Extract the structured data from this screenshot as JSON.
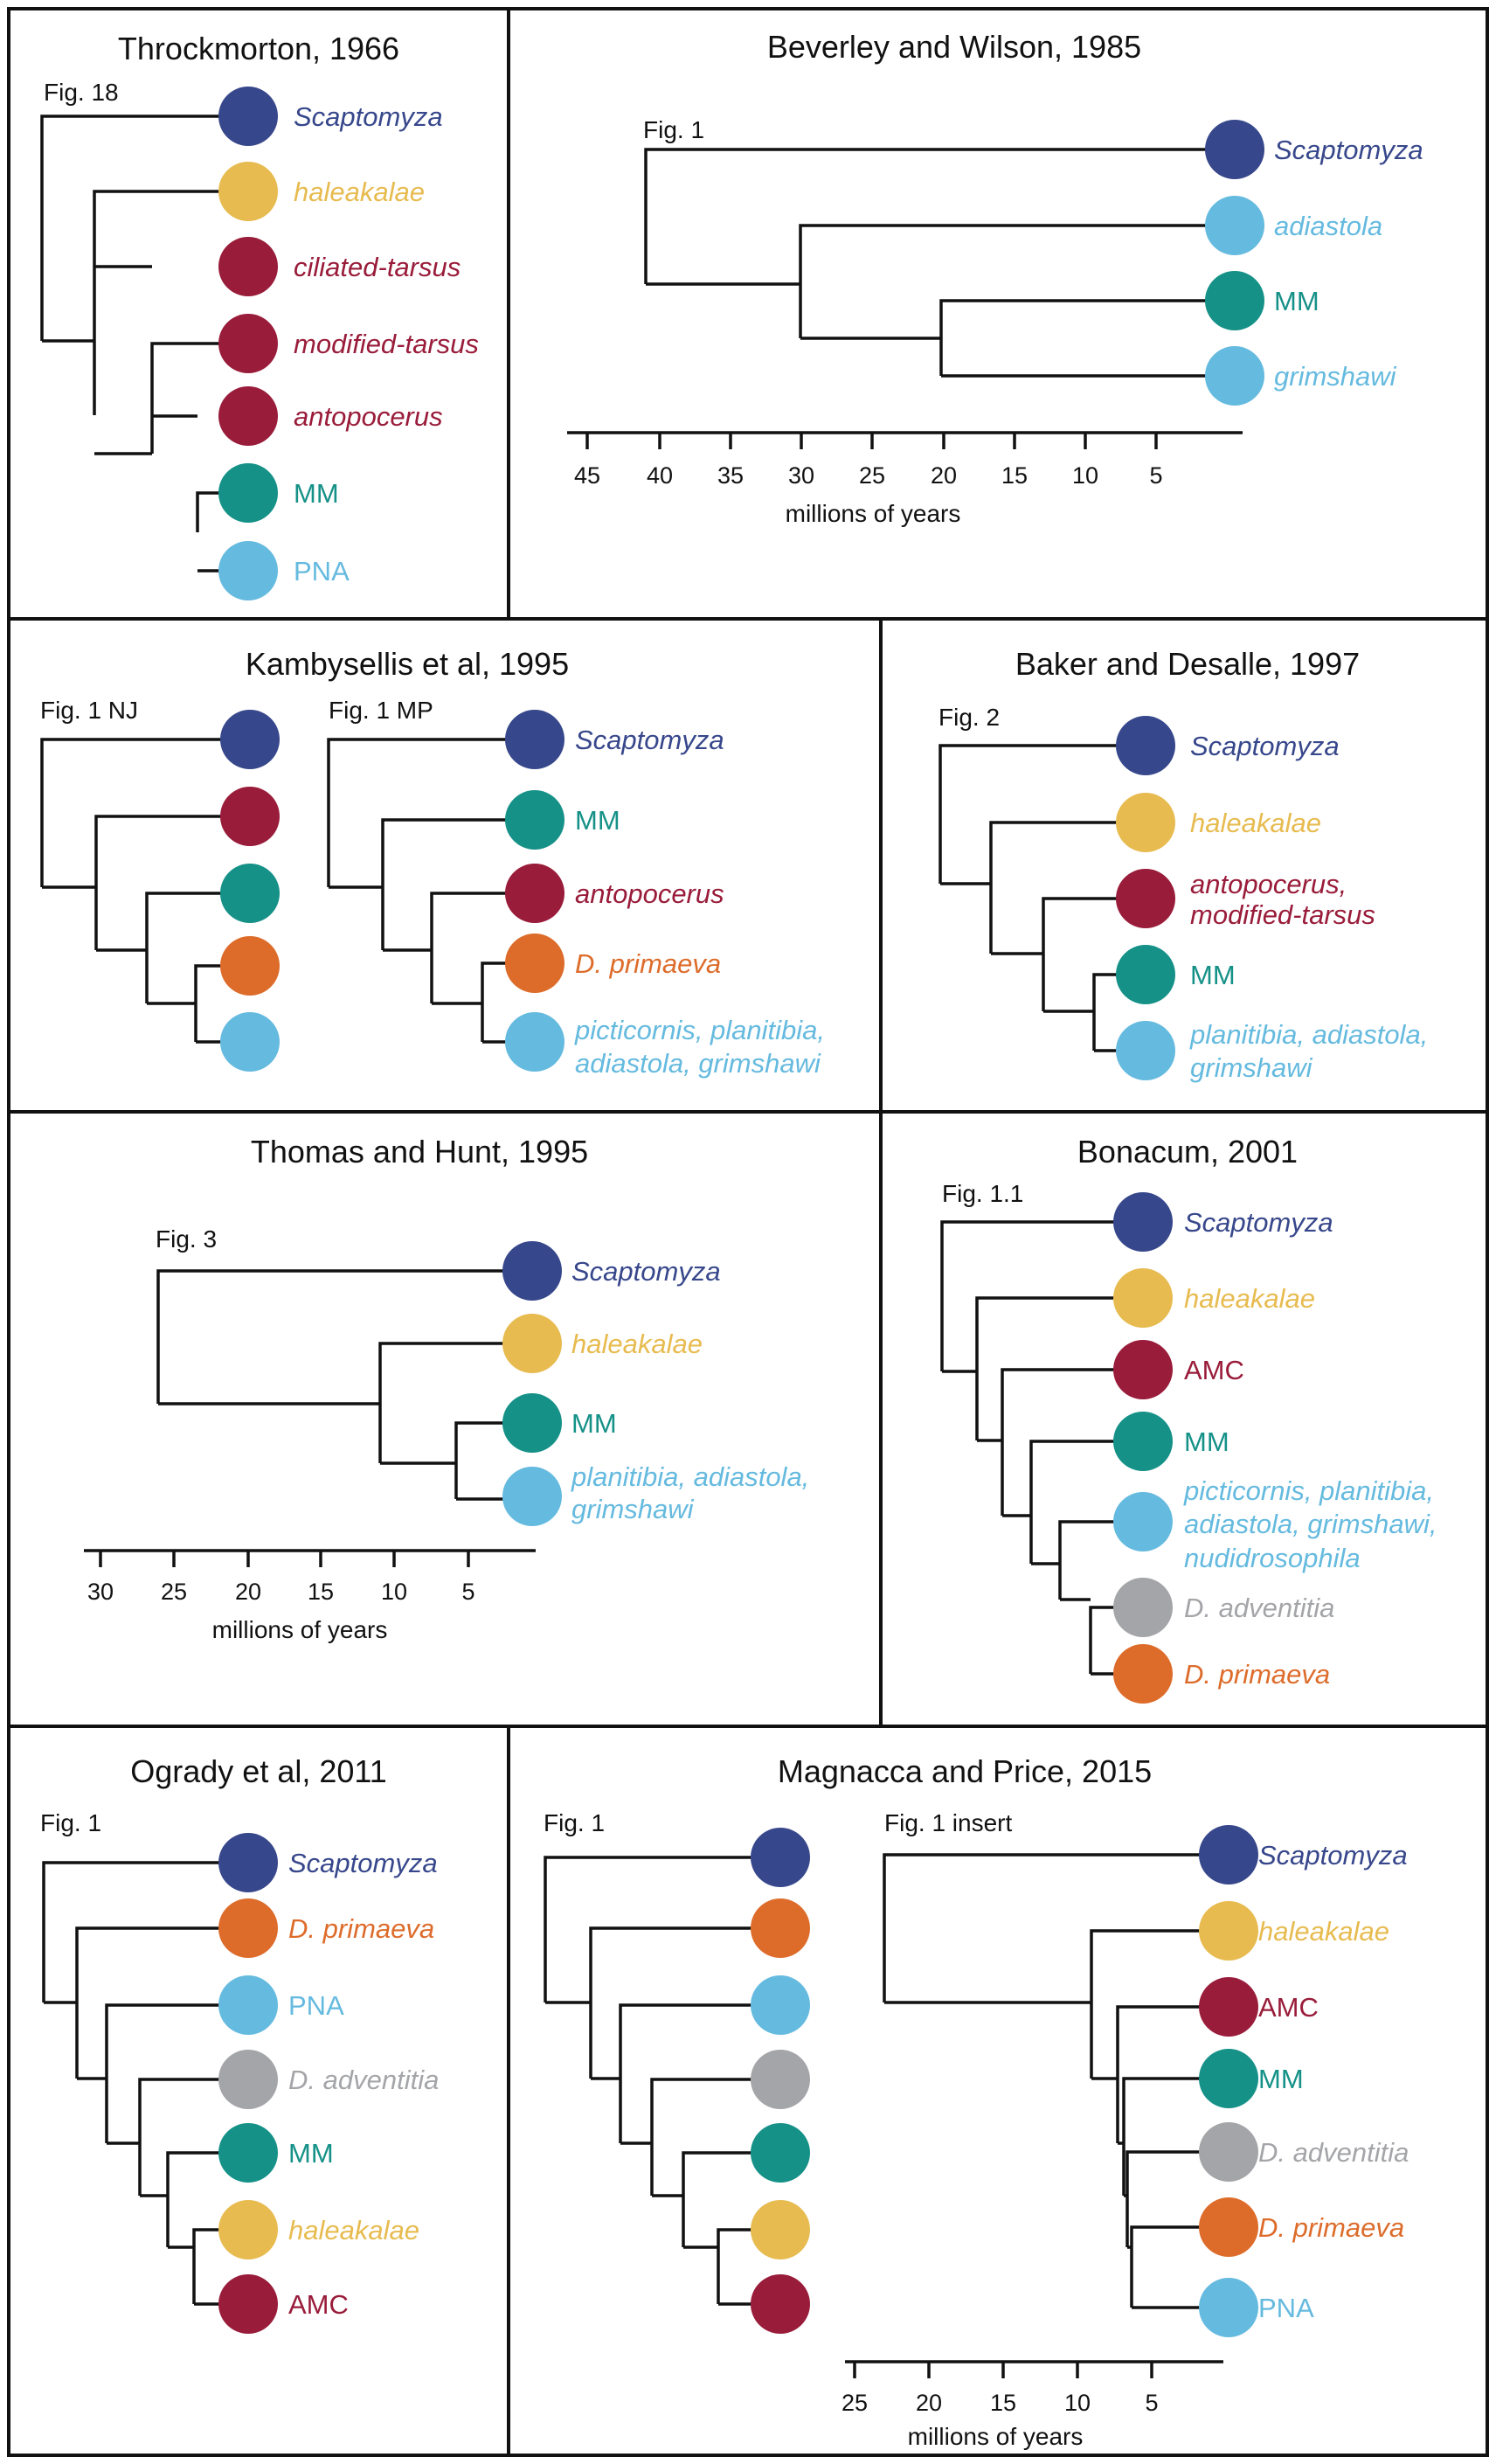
{
  "colors": {
    "Scaptomyza": "#37478B",
    "haleakalae": "#E7BB4F",
    "red_group": "#991C3A",
    "MM": "#159188",
    "PNA": "#65BADF",
    "primaeva": "#DD6C2B",
    "adventitia": "#A4A5A8"
  },
  "panels": {
    "throckmorton": {
      "title": "Throckmorton, 1966",
      "fig": "Fig. 18",
      "labels": [
        "Scaptomyza",
        "haleakalae",
        "ciliated-tarsus",
        "modified-tarsus",
        "antopocerus",
        "MM",
        "PNA"
      ]
    },
    "beverley": {
      "title": "Beverley and Wilson, 1985",
      "fig": "Fig. 1",
      "labels": [
        "Scaptomyza",
        "adiastola",
        "MM",
        "grimshawi"
      ],
      "axis_ticks": [
        "45",
        "40",
        "35",
        "30",
        "25",
        "20",
        "15",
        "10",
        "5"
      ],
      "axis_label": "millions of years"
    },
    "kambysellis": {
      "title": "Kambysellis et al, 1995",
      "fig_nj": "Fig. 1 NJ",
      "fig_mp": "Fig. 1 MP",
      "labels": [
        "Scaptomyza",
        "MM",
        "antopocerus",
        "D. primaeva",
        "picticornis, planitibia,",
        "adiastola, grimshawi"
      ]
    },
    "baker": {
      "title": "Baker and Desalle, 1997",
      "fig": "Fig. 2",
      "labels": [
        "Scaptomyza",
        "haleakalae",
        "antopocerus,",
        "modified-tarsus",
        "MM",
        "planitibia, adiastola,",
        "grimshawi"
      ]
    },
    "thomas": {
      "title": "Thomas and Hunt, 1995",
      "fig": "Fig. 3",
      "labels": [
        "Scaptomyza",
        "haleakalae",
        "MM",
        "planitibia, adiastola,",
        "grimshawi"
      ],
      "axis_ticks": [
        "30",
        "25",
        "20",
        "15",
        "10",
        "5"
      ],
      "axis_label": "millions of years"
    },
    "bonacum": {
      "title": "Bonacum, 2001",
      "fig": "Fig. 1.1",
      "labels": [
        "Scaptomyza",
        "haleakalae",
        "AMC",
        "MM",
        "picticornis, planitibia,",
        "adiastola, grimshawi,",
        "nudidrosophila",
        "D. adventitia",
        "D. primaeva"
      ]
    },
    "ogrady": {
      "title": "Ogrady et al, 2011",
      "fig": "Fig. 1",
      "labels": [
        "Scaptomyza",
        "D. primaeva",
        "PNA",
        "D. adventitia",
        "MM",
        "haleakalae",
        "AMC"
      ]
    },
    "magnacca": {
      "title": "Magnacca and Price, 2015",
      "fig_a": "Fig. 1",
      "fig_b": "Fig. 1 insert",
      "labels": [
        "Scaptomyza",
        "haleakalae",
        "AMC",
        "MM",
        "D. adventitia",
        "D. primaeva",
        "PNA"
      ],
      "axis_ticks": [
        "25",
        "20",
        "15",
        "10",
        "5"
      ],
      "axis_label": "millions of years"
    }
  }
}
